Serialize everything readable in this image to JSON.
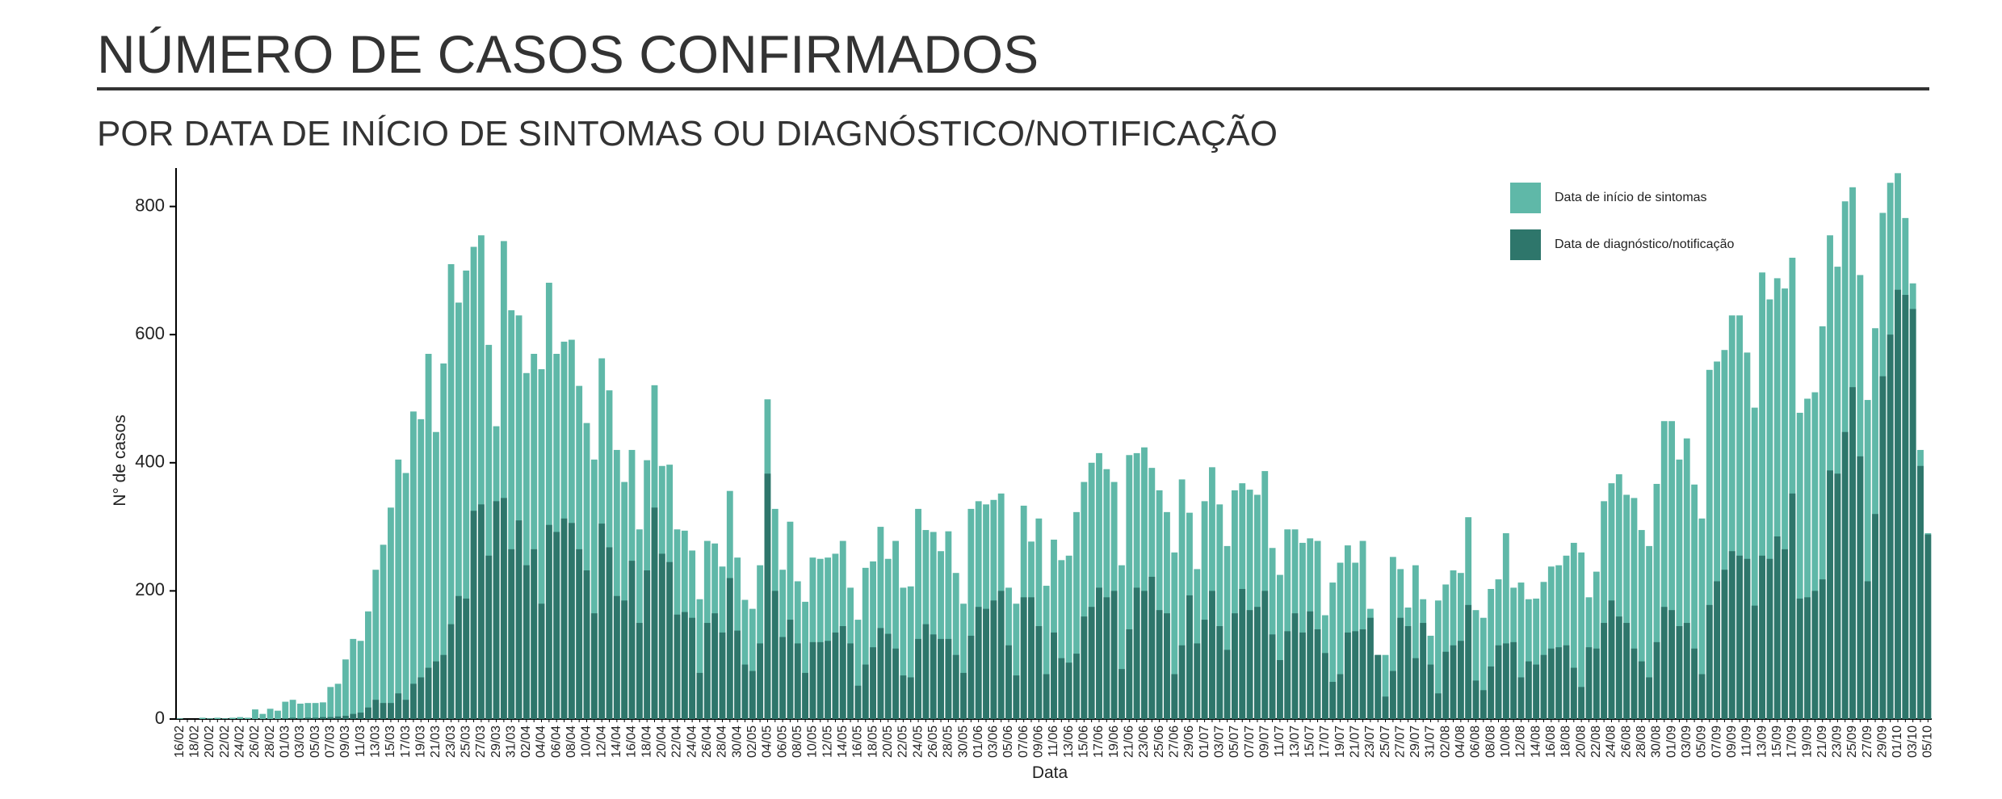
{
  "chart_data": {
    "type": "bar",
    "mode": "overlay",
    "title": "NÚMERO DE CASOS CONFIRMADOS",
    "subtitle": "POR DATA DE INÍCIO DE SINTOMAS OU DIAGNÓSTICO/NOTIFICAÇÃO",
    "x_label": "Data",
    "y_label": "N° de casos",
    "legend_position": "top-right",
    "ylim": [
      0,
      860
    ],
    "yticks": [
      0,
      200,
      400,
      600,
      800
    ],
    "categories": [
      "16/02",
      null,
      "18/02",
      null,
      "20/02",
      null,
      "22/02",
      null,
      "24/02",
      null,
      "26/02",
      null,
      "28/02",
      null,
      "01/03",
      null,
      "03/03",
      null,
      "05/03",
      null,
      "07/03",
      null,
      "09/03",
      null,
      "11/03",
      null,
      "13/03",
      null,
      "15/03",
      null,
      "17/03",
      null,
      "19/03",
      null,
      "21/03",
      null,
      "23/03",
      null,
      "25/03",
      null,
      "27/03",
      null,
      "29/03",
      null,
      "31/03",
      null,
      "02/04",
      null,
      "04/04",
      null,
      "06/04",
      null,
      "08/04",
      null,
      "10/04",
      null,
      "12/04",
      null,
      "14/04",
      null,
      "16/04",
      null,
      "18/04",
      null,
      "20/04",
      null,
      "22/04",
      null,
      "24/04",
      null,
      "26/04",
      null,
      "28/04",
      null,
      "30/04",
      null,
      "02/05",
      null,
      "04/05",
      null,
      "06/05",
      null,
      "08/05",
      null,
      "10/05",
      null,
      "12/05",
      null,
      "14/05",
      null,
      "16/05",
      null,
      "18/05",
      null,
      "20/05",
      null,
      "22/05",
      null,
      "24/05",
      null,
      "26/05",
      null,
      "28/05",
      null,
      "30/05",
      null,
      "01/06",
      null,
      "03/06",
      null,
      "05/06",
      null,
      "07/06",
      null,
      "09/06",
      null,
      "11/06",
      null,
      "13/06",
      null,
      "15/06",
      null,
      "17/06",
      null,
      "19/06",
      null,
      "21/06",
      null,
      "23/06",
      null,
      "25/06",
      null,
      "27/06",
      null,
      "29/06",
      null,
      "01/07",
      null,
      "03/07",
      null,
      "05/07",
      null,
      "07/07",
      null,
      "09/07",
      null,
      "11/07",
      null,
      "13/07",
      null,
      "15/07",
      null,
      "17/07",
      null,
      "19/07",
      null,
      "21/07",
      null,
      "23/07",
      null,
      "25/07",
      null,
      "27/07",
      null,
      "29/07",
      null,
      "31/07",
      null,
      "02/08",
      null,
      "04/08",
      null,
      "06/08",
      null,
      "08/08",
      null,
      "10/08",
      null,
      "12/08",
      null,
      "14/08",
      null,
      "16/08",
      null,
      "18/08",
      null,
      "20/08",
      null,
      "22/08",
      null,
      "24/08",
      null,
      "26/08",
      null,
      "28/08",
      null,
      "30/08",
      null,
      "01/09",
      null,
      "03/09",
      null,
      "05/09",
      null,
      "07/09",
      null,
      "09/09",
      null,
      "11/09",
      null,
      "13/09",
      null,
      "15/09",
      null,
      "17/09",
      null,
      "19/09",
      null,
      "21/09",
      null,
      "23/09",
      null,
      "25/09",
      null,
      "27/09",
      null,
      "29/09",
      null,
      "01/10",
      null,
      "03/10",
      null,
      "05/10"
    ],
    "series": [
      {
        "name": "Data de início de sintomas",
        "color": "#5fb8a8",
        "values": [
          1,
          0,
          0,
          2,
          1,
          2,
          1,
          2,
          3,
          2,
          15,
          8,
          16,
          13,
          27,
          30,
          24,
          25,
          25,
          26,
          50,
          55,
          93,
          125,
          122,
          168,
          233,
          272,
          330,
          405,
          384,
          480,
          468,
          570,
          448,
          555,
          710,
          650,
          700,
          737,
          755,
          584,
          457,
          746,
          638,
          630,
          540,
          570,
          546,
          681,
          570,
          589,
          592,
          520,
          462,
          405,
          563,
          513,
          420,
          370,
          420,
          296,
          404,
          521,
          395,
          397,
          296,
          294,
          263,
          187,
          278,
          274,
          238,
          356,
          252,
          186,
          172,
          240,
          499,
          328,
          233,
          308,
          215,
          183,
          252,
          250,
          252,
          258,
          278,
          205,
          155,
          236,
          246,
          300,
          250,
          278,
          205,
          207,
          328,
          295,
          292,
          262,
          293,
          228,
          180,
          328,
          340,
          335,
          342,
          352,
          205,
          180,
          333,
          277,
          313,
          208,
          280,
          248,
          255,
          323,
          370,
          400,
          415,
          390,
          370,
          240,
          412,
          415,
          424,
          392,
          357,
          323,
          260,
          374,
          322,
          234,
          340,
          393,
          335,
          270,
          357,
          368,
          358,
          350,
          387,
          267,
          225,
          296,
          296,
          275,
          282,
          278,
          162,
          213,
          244,
          271,
          244,
          278,
          172,
          100,
          100,
          253,
          234,
          174,
          240,
          187,
          130,
          185,
          210,
          232,
          228,
          315,
          170,
          158,
          203,
          218,
          290,
          205,
          213,
          187,
          188,
          214,
          238,
          240,
          255,
          275,
          260,
          190,
          230,
          340,
          368,
          382,
          350,
          345,
          295,
          270,
          367,
          465,
          465,
          405,
          438,
          366,
          313,
          545,
          558,
          576,
          630,
          630,
          572,
          486,
          697,
          655,
          688,
          672,
          720,
          478,
          500,
          510,
          613,
          755,
          706,
          808,
          830,
          693,
          498,
          610,
          790,
          837,
          852,
          782,
          680,
          420,
          290
        ]
      },
      {
        "name": "Data de diagnóstico/notificação",
        "color": "#2e766b",
        "values": [
          0,
          0,
          0,
          0,
          0,
          0,
          0,
          0,
          0,
          0,
          0,
          0,
          0,
          0,
          1,
          2,
          1,
          2,
          2,
          3,
          3,
          4,
          5,
          8,
          10,
          18,
          30,
          25,
          25,
          40,
          30,
          55,
          65,
          80,
          90,
          100,
          148,
          192,
          188,
          325,
          335,
          255,
          340,
          345,
          265,
          310,
          240,
          265,
          180,
          303,
          292,
          313,
          306,
          265,
          232,
          165,
          305,
          268,
          192,
          185,
          247,
          150,
          232,
          330,
          258,
          245,
          163,
          167,
          158,
          72,
          150,
          165,
          135,
          220,
          138,
          85,
          75,
          118,
          383,
          200,
          128,
          155,
          118,
          72,
          120,
          120,
          122,
          135,
          145,
          118,
          52,
          85,
          112,
          142,
          133,
          110,
          68,
          65,
          125,
          148,
          132,
          125,
          125,
          100,
          72,
          130,
          175,
          172,
          185,
          200,
          115,
          68,
          190,
          190,
          145,
          70,
          135,
          95,
          88,
          102,
          160,
          175,
          205,
          190,
          200,
          78,
          140,
          205,
          200,
          222,
          170,
          165,
          70,
          115,
          193,
          118,
          155,
          200,
          145,
          108,
          165,
          203,
          170,
          175,
          200,
          132,
          92,
          137,
          165,
          135,
          168,
          140,
          103,
          58,
          70,
          135,
          137,
          140,
          158,
          100,
          35,
          75,
          158,
          145,
          95,
          150,
          85,
          40,
          105,
          115,
          122,
          178,
          60,
          45,
          82,
          115,
          118,
          120,
          65,
          90,
          85,
          100,
          110,
          112,
          115,
          80,
          50,
          112,
          110,
          150,
          185,
          160,
          150,
          110,
          90,
          65,
          120,
          175,
          170,
          145,
          150,
          110,
          70,
          178,
          215,
          233,
          262,
          255,
          250,
          177,
          255,
          250,
          285,
          265,
          352,
          188,
          190,
          200,
          218,
          388,
          383,
          448,
          518,
          410,
          215,
          320,
          535,
          600,
          670,
          662,
          640,
          395,
          288
        ]
      }
    ]
  }
}
